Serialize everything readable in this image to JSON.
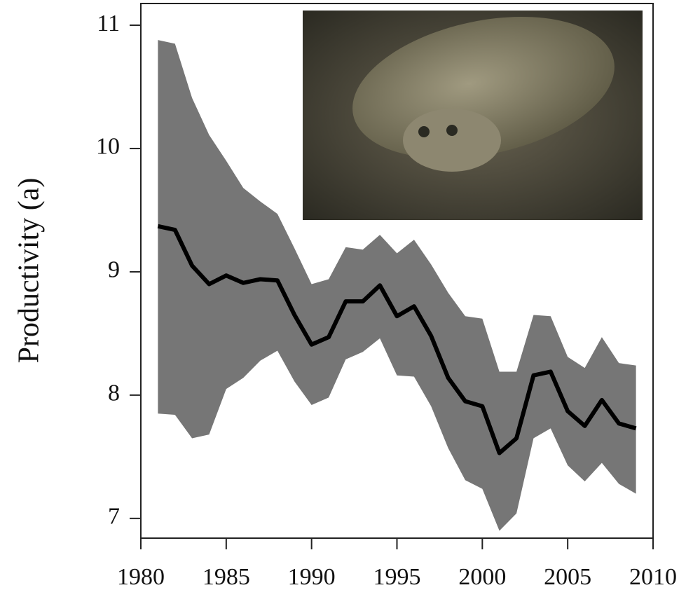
{
  "chart_data": {
    "type": "line-band",
    "ylabel": "Productivity (a)",
    "x": [
      1981,
      1982,
      1983,
      1984,
      1985,
      1986,
      1987,
      1988,
      1989,
      1990,
      1991,
      1992,
      1993,
      1994,
      1995,
      1996,
      1997,
      1998,
      1999,
      2000,
      2001,
      2002,
      2003,
      2004,
      2005,
      2006,
      2007,
      2008,
      2009
    ],
    "values": [
      9.37,
      9.34,
      9.05,
      8.9,
      8.97,
      8.91,
      8.94,
      8.93,
      8.65,
      8.41,
      8.47,
      8.76,
      8.76,
      8.89,
      8.64,
      8.72,
      8.48,
      8.14,
      7.95,
      7.91,
      7.53,
      7.65,
      8.16,
      8.19,
      7.87,
      7.75,
      7.96,
      7.77,
      7.73
    ],
    "upper": [
      10.88,
      10.85,
      10.41,
      10.11,
      9.9,
      9.68,
      9.57,
      9.47,
      9.19,
      8.9,
      8.94,
      9.2,
      9.18,
      9.3,
      9.15,
      9.26,
      9.06,
      8.83,
      8.64,
      8.62,
      8.19,
      8.19,
      8.65,
      8.64,
      8.31,
      8.22,
      8.47,
      8.26,
      8.24
    ],
    "lower": [
      7.85,
      7.84,
      7.65,
      7.68,
      8.05,
      8.14,
      8.28,
      8.36,
      8.11,
      7.92,
      7.98,
      8.29,
      8.35,
      8.46,
      8.16,
      8.15,
      7.91,
      7.57,
      7.31,
      7.24,
      6.9,
      7.04,
      7.65,
      7.73,
      7.43,
      7.3,
      7.45,
      7.28,
      7.2
    ],
    "color": "#000000",
    "band_color": "#767676",
    "xlim": [
      1980,
      2010
    ],
    "ylim": [
      6.84,
      11.176
    ],
    "xticks": [
      1980,
      1985,
      1990,
      1995,
      2000,
      2005,
      2010
    ],
    "yticks": [
      7,
      8,
      9,
      10,
      11
    ]
  }
}
